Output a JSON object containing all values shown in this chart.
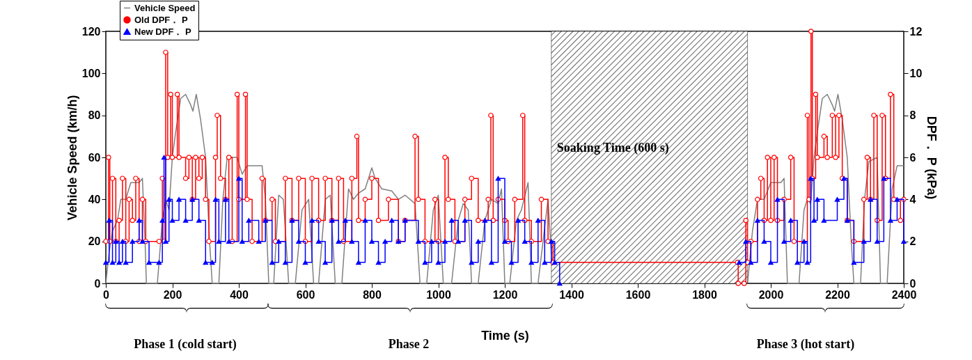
{
  "chart_data": {
    "type": "line",
    "xlabel": "Time (s)",
    "ylabel": "Vehicle Speed (km/h)",
    "y2label": "DPF． P (kPa)",
    "xlim": [
      0,
      2400
    ],
    "xticks": [
      0,
      200,
      400,
      600,
      800,
      1000,
      1200,
      1400,
      1600,
      1800,
      2000,
      2200,
      2400
    ],
    "ylim": [
      0,
      120
    ],
    "yticks": [
      0,
      20,
      40,
      60,
      80,
      100,
      120
    ],
    "y2lim": [
      0,
      12
    ],
    "y2ticks": [
      0,
      2,
      4,
      6,
      8,
      10,
      12
    ],
    "legend": "top left",
    "grid": false,
    "bands": [
      {
        "axis": "x",
        "from": 1340,
        "to": 1930,
        "label": "Soaking Time (600 s)"
      }
    ],
    "annotations": [
      "Phase 1 (cold start)",
      "Phase 2",
      "Phase 3 (hot start)"
    ],
    "series": [
      {
        "name": "Vehicle Speed",
        "color": "#808080",
        "type": "line",
        "marker": "none",
        "x": [
          0,
          10,
          20,
          35,
          45,
          60,
          75,
          100,
          110,
          118,
          122,
          155,
          170,
          180,
          190,
          200,
          210,
          225,
          240,
          255,
          262,
          272,
          285,
          300,
          312,
          320,
          340,
          352,
          365,
          395,
          410,
          425,
          470,
          480,
          490,
          505,
          520,
          534,
          550,
          570,
          590,
          610,
          625,
          640,
          660,
          675,
          690,
          710,
          730,
          745,
          760,
          780,
          800,
          810,
          830,
          860,
          880,
          900,
          930,
          945,
          965,
          985,
          1000,
          1015,
          1040,
          1060,
          1075,
          1090,
          1100,
          1120,
          1140,
          1160,
          1180,
          1190,
          1200,
          1215,
          1235,
          1250,
          1270,
          1280,
          1300,
          1315,
          1330,
          1345,
          1360,
          1930,
          1945,
          1960,
          1980,
          2000,
          2030,
          2040,
          2050,
          2085,
          2100,
          2110,
          2120,
          2130,
          2140,
          2155,
          2170,
          2185,
          2192,
          2202,
          2215,
          2230,
          2242,
          2250,
          2270,
          2282,
          2295,
          2320,
          2330,
          2350,
          2365,
          2380,
          2400
        ],
        "values": [
          0,
          15,
          25,
          30,
          40,
          40,
          48,
          48,
          50,
          20,
          0,
          0,
          30,
          40,
          35,
          60,
          72,
          88,
          90,
          85,
          82,
          90,
          78,
          60,
          20,
          0,
          0,
          40,
          60,
          60,
          52,
          56,
          56,
          40,
          0,
          0,
          42,
          40,
          0,
          0,
          35,
          40,
          0,
          0,
          40,
          42,
          0,
          0,
          45,
          40,
          43,
          45,
          55,
          50,
          45,
          44,
          40,
          42,
          38,
          0,
          0,
          35,
          42,
          0,
          0,
          30,
          38,
          35,
          0,
          0,
          30,
          40,
          38,
          45,
          0,
          0,
          30,
          35,
          48,
          0,
          0,
          20,
          40,
          0,
          null,
          0,
          25,
          40,
          40,
          48,
          48,
          50,
          0,
          0,
          35,
          40,
          38,
          60,
          72,
          88,
          90,
          85,
          82,
          90,
          78,
          60,
          20,
          0,
          0,
          40,
          58,
          60,
          0,
          0,
          45,
          56,
          56
        ]
      },
      {
        "name": "Old DPF． P",
        "color": "#ff0000",
        "type": "step",
        "marker": "circle",
        "axis": "y2",
        "x": [
          0,
          8,
          12,
          20,
          30,
          40,
          50,
          60,
          70,
          80,
          90,
          100,
          110,
          120,
          160,
          170,
          175,
          180,
          186,
          195,
          200,
          215,
          220,
          240,
          250,
          260,
          270,
          280,
          290,
          300,
          310,
          330,
          335,
          345,
          360,
          370,
          380,
          395,
          400,
          420,
          425,
          440,
          470,
          480,
          500,
          510,
          540,
          560,
          580,
          600,
          620,
          640,
          660,
          680,
          700,
          715,
          740,
          755,
          760,
          780,
          800,
          820,
          850,
          880,
          900,
          930,
          940,
          960,
          990,
          1000,
          1020,
          1030,
          1050,
          1080,
          1100,
          1120,
          1150,
          1158,
          1165,
          1180,
          1200,
          1210,
          1230,
          1254,
          1260,
          1280,
          1310,
          1330,
          1345,
          1900,
          1902,
          1920,
          1925,
          1930,
          1940,
          1960,
          1970,
          1980,
          1990,
          2000,
          2010,
          2020,
          2040,
          2060,
          2070,
          2110,
          2115,
          2121,
          2125,
          2135,
          2140,
          2160,
          2170,
          2185,
          2195,
          2205,
          2215,
          2230,
          2250,
          2280,
          2290,
          2300,
          2310,
          2320,
          2335,
          2345,
          2360,
          2370,
          2390,
          2400
        ],
        "values": [
          2,
          6,
          2,
          5,
          2,
          3,
          5,
          2,
          4,
          3,
          5,
          2,
          4,
          2,
          2,
          5,
          2,
          11,
          6,
          9,
          6,
          9,
          6,
          5,
          6,
          4,
          6,
          5,
          6,
          4,
          2,
          6,
          8,
          5,
          4,
          6,
          2,
          9,
          4,
          9,
          4,
          2,
          5,
          3,
          4,
          2,
          5,
          3,
          5,
          2,
          5,
          3,
          5,
          3,
          5,
          2,
          5,
          7,
          3,
          4,
          5,
          3,
          4,
          2,
          3,
          7,
          4,
          2,
          4,
          2,
          6,
          4,
          2,
          4,
          5,
          3,
          4,
          8,
          3,
          4,
          3,
          2,
          4,
          8,
          3,
          2,
          4,
          2,
          1,
          1,
          0,
          0,
          3,
          1,
          2,
          4,
          5,
          3,
          6,
          3,
          6,
          3,
          4,
          6,
          2,
          8,
          4,
          12,
          5,
          9,
          6,
          7,
          6,
          8,
          6,
          8,
          5,
          3,
          2,
          4,
          6,
          4,
          8,
          3,
          8,
          5,
          9,
          4,
          3,
          4
        ]
      },
      {
        "name": "New DPF． P",
        "color": "#0000ff",
        "type": "step",
        "marker": "triangle",
        "axis": "y2",
        "x": [
          0,
          10,
          20,
          30,
          40,
          50,
          60,
          80,
          100,
          110,
          130,
          160,
          170,
          175,
          180,
          190,
          200,
          220,
          240,
          260,
          280,
          300,
          320,
          330,
          340,
          360,
          370,
          400,
          410,
          430,
          460,
          480,
          500,
          520,
          540,
          560,
          580,
          600,
          620,
          640,
          660,
          680,
          700,
          720,
          740,
          760,
          780,
          800,
          820,
          840,
          860,
          880,
          900,
          940,
          960,
          980,
          1000,
          1020,
          1040,
          1060,
          1080,
          1100,
          1120,
          1140,
          1160,
          1180,
          1200,
          1220,
          1240,
          1260,
          1280,
          1300,
          1320,
          1340,
          1350,
          1365,
          1380,
          1905,
          1925,
          1940,
          1960,
          1980,
          2000,
          2020,
          2040,
          2060,
          2080,
          2100,
          2110,
          2120,
          2130,
          2140,
          2160,
          2200,
          2220,
          2230,
          2250,
          2280,
          2300,
          2320,
          2340,
          2360,
          2380,
          2400
        ],
        "values": [
          1,
          3,
          1,
          2,
          1,
          2,
          1,
          2,
          3,
          2,
          1,
          1,
          3,
          6,
          2,
          4,
          3,
          4,
          3,
          4,
          3,
          1,
          1,
          4,
          2,
          4,
          2,
          5,
          2,
          3,
          2,
          3,
          1,
          2,
          1,
          3,
          2,
          1,
          3,
          2,
          1,
          3,
          2,
          3,
          2,
          1,
          3,
          2,
          1,
          2,
          3,
          2,
          3,
          2,
          1,
          2,
          1,
          2,
          3,
          2,
          3,
          1,
          2,
          3,
          1,
          5,
          2,
          1,
          3,
          2,
          1,
          3,
          1,
          2,
          1,
          0,
          null,
          1,
          2,
          1,
          3,
          2,
          1,
          4,
          2,
          3,
          1,
          2,
          1,
          5,
          3,
          4,
          3,
          4,
          5,
          3,
          1,
          2,
          4,
          2,
          5,
          3,
          4,
          2
        ]
      }
    ]
  }
}
